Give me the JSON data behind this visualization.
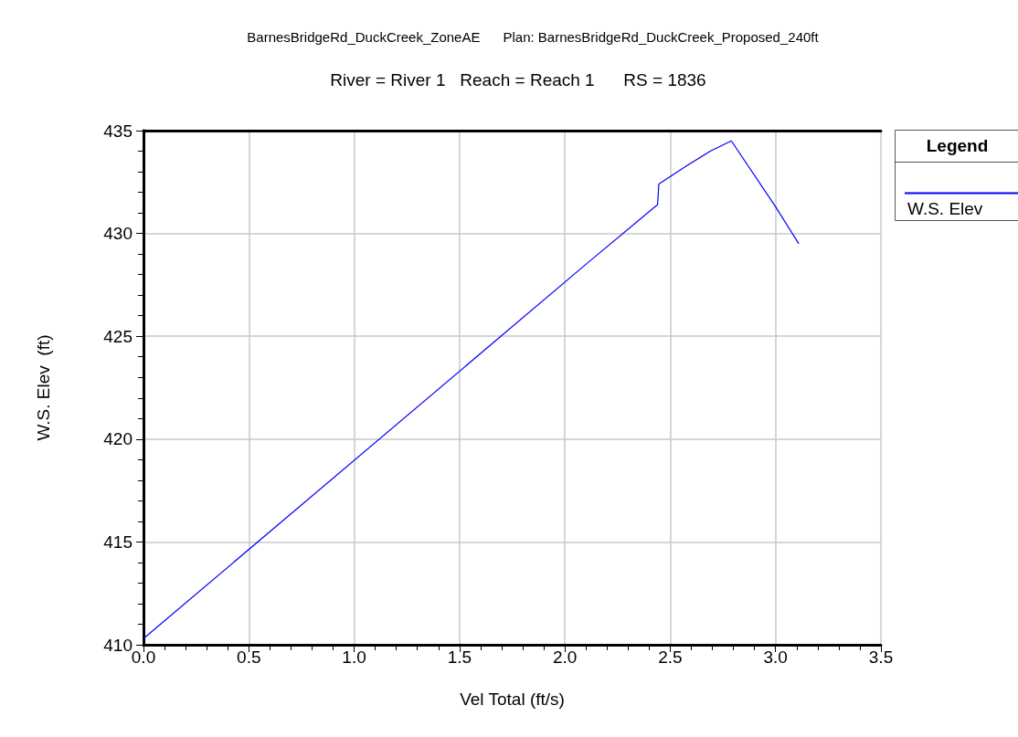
{
  "chart_data": {
    "type": "line",
    "title": "BarnesBridgeRd_DuckCreek_ZoneAE      Plan: BarnesBridgeRd_DuckCreek_Proposed_240ft",
    "subtitle": "River = River 1   Reach = Reach 1      RS = 1836",
    "xlabel": "Vel Total (ft/s)",
    "ylabel": "W.S. Elev  (ft)",
    "legend_title": "Legend",
    "legend": "top right",
    "grid": true,
    "marker": "none",
    "line_style": "solid",
    "xlim": [
      0,
      3.5
    ],
    "xticks": [
      {
        "value": 0,
        "label": "0.0"
      },
      {
        "value": 0.5,
        "label": "0.5"
      },
      {
        "value": 1,
        "label": "1.0"
      },
      {
        "value": 1.5,
        "label": "1.5"
      },
      {
        "value": 2,
        "label": "2.0"
      },
      {
        "value": 2.5,
        "label": "2.5"
      },
      {
        "value": 3,
        "label": "3.0"
      },
      {
        "value": 3.5,
        "label": "3.5"
      }
    ],
    "ylim": [
      410,
      435
    ],
    "yticks": [
      410,
      415,
      420,
      425,
      430,
      435
    ],
    "series": [
      {
        "name": "W.S. Elev",
        "color": "#0000ff",
        "x": [
          0,
          2.1,
          2.44,
          2.446,
          2.58,
          2.69,
          2.79,
          3.0,
          3.11
        ],
        "values": [
          410.3,
          428.5,
          431.4,
          432.4,
          433.3,
          434.0,
          434.5,
          431.3,
          429.5
        ]
      }
    ]
  }
}
